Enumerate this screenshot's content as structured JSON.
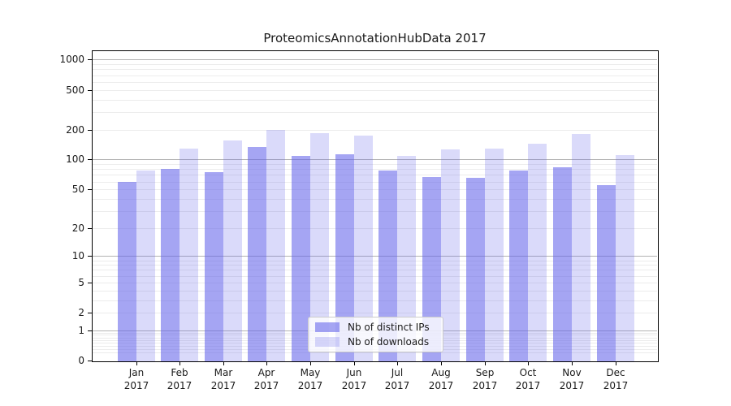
{
  "chart_data": {
    "type": "bar",
    "title": "ProteomicsAnnotationHubData 2017",
    "categories": [
      "Jan 2017",
      "Feb 2017",
      "Mar 2017",
      "Apr 2017",
      "May 2017",
      "Jun 2017",
      "Jul 2017",
      "Aug 2017",
      "Sep 2017",
      "Oct 2017",
      "Nov 2017",
      "Dec 2017"
    ],
    "series": [
      {
        "name": "Nb of distinct IPs",
        "color": "rgba(100,100,235,0.58)",
        "values": [
          60,
          81,
          74,
          135,
          108,
          114,
          77,
          67,
          66,
          77,
          84,
          55
        ]
      },
      {
        "name": "Nb of downloads",
        "color": "rgba(100,100,235,0.24)",
        "values": [
          77,
          128,
          155,
          200,
          183,
          174,
          108,
          126,
          129,
          143,
          180,
          111
        ]
      }
    ],
    "xlabel": "",
    "ylabel": "",
    "y_scale": "log1p",
    "y_ticks": [
      0,
      1,
      2,
      5,
      10,
      20,
      50,
      100,
      200,
      500,
      1000
    ],
    "major_grid_values": [
      1,
      10,
      100,
      1000
    ],
    "ylim": [
      0,
      1240
    ],
    "grid": true,
    "legend_position": "inside lower center"
  },
  "colors": {
    "major_grid": "#b3b3b3",
    "minor_grid": "#ececec",
    "spine": "#000000",
    "text": "#1a1a1a"
  }
}
